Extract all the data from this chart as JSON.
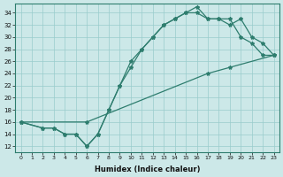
{
  "xlabel": "Humidex (Indice chaleur)",
  "bg_color": "#cce8e8",
  "line_color": "#2e7d6e",
  "xlim": [
    -0.5,
    23.5
  ],
  "ylim": [
    11,
    35.5
  ],
  "xticks": [
    0,
    1,
    2,
    3,
    4,
    5,
    6,
    7,
    8,
    9,
    10,
    11,
    12,
    13,
    14,
    15,
    16,
    17,
    18,
    19,
    20,
    21,
    22,
    23
  ],
  "yticks": [
    12,
    14,
    16,
    18,
    20,
    22,
    24,
    26,
    28,
    30,
    32,
    34
  ],
  "line1_x": [
    0,
    2,
    3,
    4,
    5,
    6,
    7,
    8,
    9,
    10,
    11,
    12,
    13,
    14,
    15,
    16,
    17,
    18,
    19,
    20,
    21,
    22,
    23
  ],
  "line1_y": [
    16,
    15,
    15,
    14,
    14,
    12,
    14,
    18,
    22,
    25,
    28,
    30,
    32,
    33,
    34,
    35,
    33,
    33,
    33,
    30,
    29,
    27,
    27
  ],
  "line2_x": [
    0,
    2,
    3,
    4,
    5,
    6,
    7,
    8,
    9,
    10,
    11,
    12,
    13,
    14,
    15,
    16,
    17,
    18,
    19,
    20,
    21,
    22,
    23
  ],
  "line2_y": [
    16,
    15,
    15,
    14,
    14,
    12,
    14,
    18,
    22,
    26,
    28,
    30,
    32,
    33,
    34,
    34,
    33,
    33,
    32,
    33,
    30,
    29,
    27
  ],
  "line3_x": [
    0,
    6,
    17,
    19,
    23
  ],
  "line3_y": [
    16,
    16,
    24,
    25,
    27
  ],
  "grid_color": "#99cccc"
}
